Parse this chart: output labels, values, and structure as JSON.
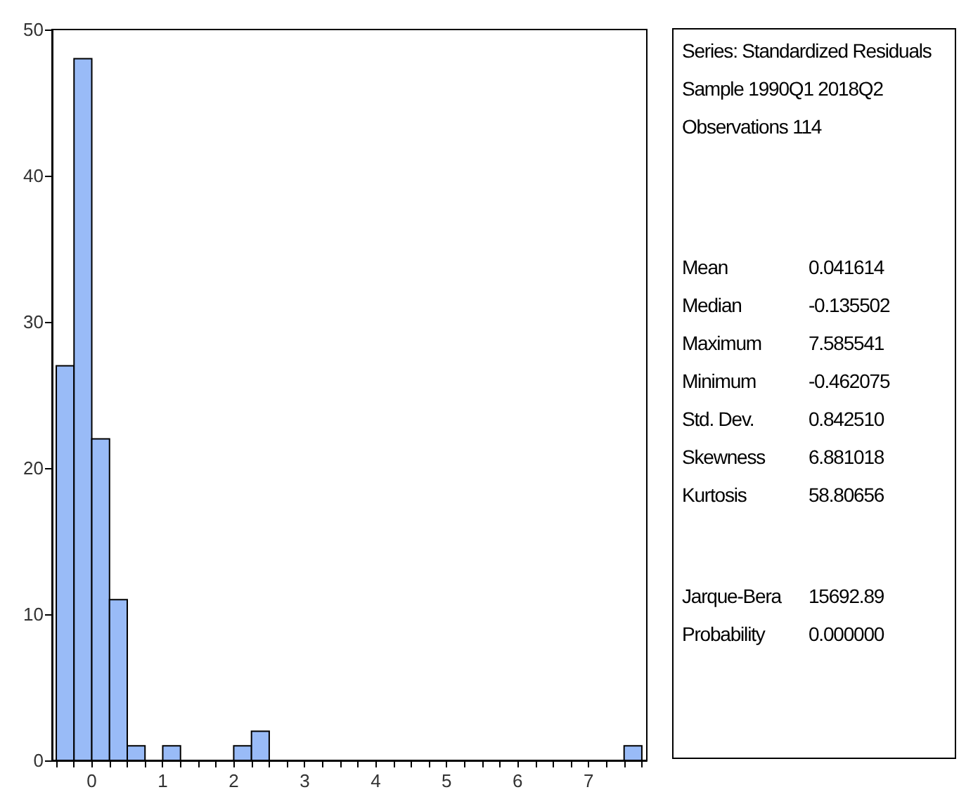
{
  "chart_data": {
    "type": "histogram",
    "bins": [
      -0.5,
      -0.25,
      0,
      0.25,
      0.5,
      0.75,
      1,
      1.25,
      1.5,
      1.75,
      2,
      2.25,
      2.5,
      2.75,
      3,
      3.25,
      3.5,
      3.75,
      4,
      4.25,
      4.5,
      4.75,
      5,
      5.25,
      5.5,
      5.75,
      6,
      6.25,
      6.5,
      6.75,
      7,
      7.25,
      7.5,
      7.75
    ],
    "values": [
      27,
      48,
      22,
      11,
      1,
      0,
      1,
      0,
      0,
      0,
      1,
      2,
      0,
      0,
      0,
      0,
      0,
      0,
      0,
      0,
      0,
      0,
      0,
      0,
      0,
      0,
      0,
      0,
      0,
      0,
      0,
      0,
      1
    ],
    "color": "#99bbf7",
    "xlim": [
      -0.56,
      7.82
    ],
    "xticks": [
      {
        "value": -0.5,
        "label": null
      },
      {
        "value": -0.25,
        "label": null
      },
      0,
      {
        "value": 0.25,
        "label": null
      },
      {
        "value": 0.5,
        "label": null
      },
      {
        "value": 0.75,
        "label": null
      },
      1,
      {
        "value": 1.25,
        "label": null
      },
      {
        "value": 1.5,
        "label": null
      },
      {
        "value": 1.75,
        "label": null
      },
      2,
      {
        "value": 2.25,
        "label": null
      },
      {
        "value": 2.5,
        "label": null
      },
      {
        "value": 2.75,
        "label": null
      },
      3,
      {
        "value": 3.25,
        "label": null
      },
      {
        "value": 3.5,
        "label": null
      },
      {
        "value": 3.75,
        "label": null
      },
      4,
      {
        "value": 4.25,
        "label": null
      },
      {
        "value": 4.5,
        "label": null
      },
      {
        "value": 4.75,
        "label": null
      },
      5,
      {
        "value": 5.25,
        "label": null
      },
      {
        "value": 5.5,
        "label": null
      },
      {
        "value": 5.75,
        "label": null
      },
      6,
      {
        "value": 6.25,
        "label": null
      },
      {
        "value": 6.5,
        "label": null
      },
      {
        "value": 6.75,
        "label": null
      },
      7,
      {
        "value": 7.25,
        "label": null
      },
      {
        "value": 7.5,
        "label": null
      },
      {
        "value": 7.75,
        "label": null
      }
    ],
    "ylim": [
      0,
      50
    ],
    "yticks": [
      0,
      10,
      20,
      30,
      40,
      50
    ],
    "grid": false,
    "annotations": [
      "Series: Standardized Residuals",
      "Sample 1990Q1 2018Q2",
      "Observations 114",
      "Mean\t0.041614",
      "Median\t-0.135502",
      "Maximum\t7.585541",
      "Minimum\t-0.462075",
      "Std. Dev.\t0.842510",
      "Skewness\t6.881018",
      "Kurtosis\t58.80656",
      "Jarque-Bera\t15692.89",
      "Probability\t0.000000"
    ]
  }
}
